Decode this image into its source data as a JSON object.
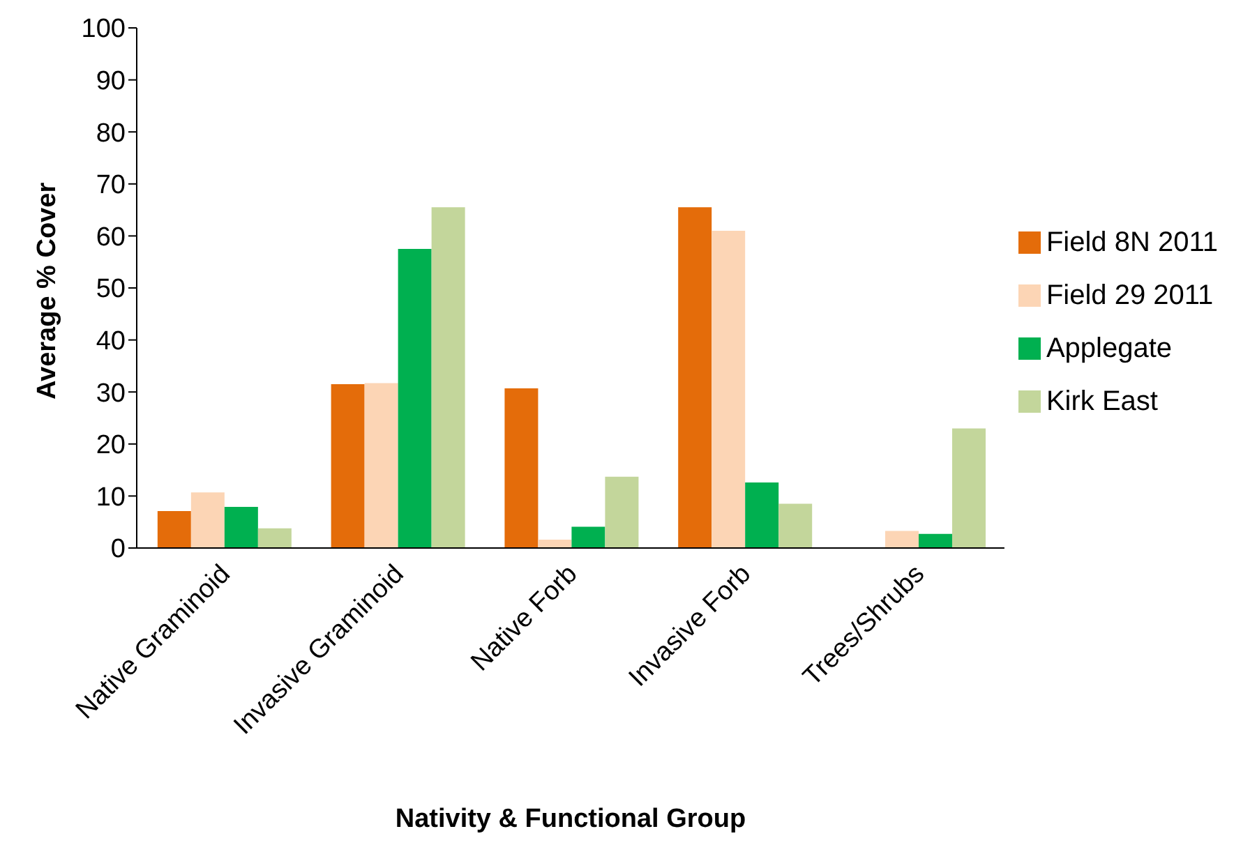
{
  "chart_data": {
    "type": "bar",
    "xlabel": "Nativity & Functional Group",
    "ylabel": "Average % Cover",
    "categories": [
      "Native Graminoid",
      "Invasive Graminoid",
      "Native Forb",
      "Invasive Forb",
      "Trees/Shrubs"
    ],
    "series": [
      {
        "name": "Field 8N 2011",
        "color": "#e46c0a",
        "values": [
          7.1,
          31.5,
          30.7,
          65.5,
          0
        ]
      },
      {
        "name": "Field 29 2011",
        "color": "#fcd5b5",
        "values": [
          10.7,
          31.7,
          1.6,
          61,
          3.3
        ]
      },
      {
        "name": "Applegate",
        "color": "#00b050",
        "values": [
          7.9,
          57.5,
          4.1,
          12.6,
          2.7
        ]
      },
      {
        "name": "Kirk East",
        "color": "#c3d69b",
        "values": [
          3.8,
          65.5,
          13.7,
          8.5,
          23
        ]
      }
    ],
    "ylim": [
      0,
      100
    ],
    "yticks": [
      0,
      10,
      20,
      30,
      40,
      50,
      60,
      70,
      80,
      90,
      100
    ],
    "grid": false,
    "legend": "right"
  }
}
